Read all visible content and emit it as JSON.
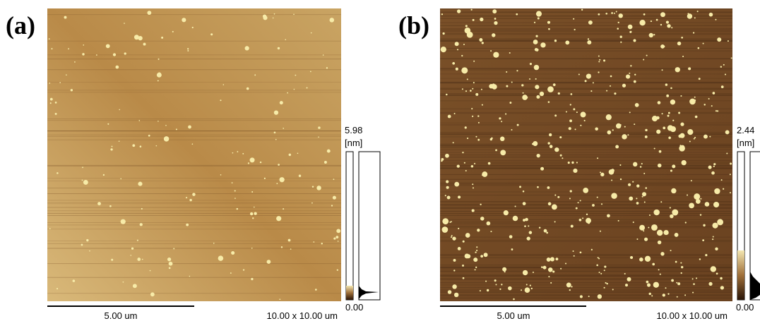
{
  "panels": [
    {
      "label": "(a)",
      "colorbar": {
        "max": "5.98",
        "unit": "[nm]",
        "min": "0.00"
      },
      "scale_bar": "5.00 um",
      "scan_size": "10.00 x 10.00 um"
    },
    {
      "label": "(b)",
      "colorbar": {
        "max": "2.44",
        "unit": "[nm]",
        "min": "0.00"
      },
      "scale_bar": "5.00 um",
      "scan_size": "10.00 x 10.00 um"
    }
  ]
}
